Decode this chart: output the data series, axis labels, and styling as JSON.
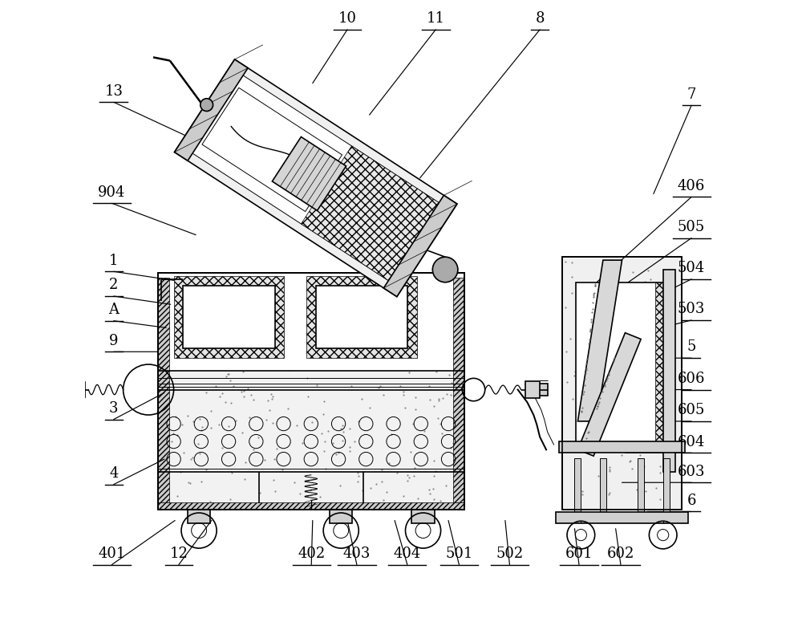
{
  "bg_color": "#ffffff",
  "line_color": "#000000",
  "fig_width": 10.0,
  "fig_height": 7.9,
  "font_size": 13,
  "line_width": 1.2,
  "thin_line": 0.7,
  "labels": {
    "13": [
      0.045,
      0.84,
      0.185,
      0.775
    ],
    "10": [
      0.415,
      0.955,
      0.36,
      0.87
    ],
    "11": [
      0.555,
      0.955,
      0.45,
      0.82
    ],
    "8": [
      0.72,
      0.955,
      0.53,
      0.72
    ],
    "7": [
      0.96,
      0.835,
      0.9,
      0.695
    ],
    "406": [
      0.96,
      0.69,
      0.81,
      0.555
    ],
    "505": [
      0.96,
      0.625,
      0.81,
      0.52
    ],
    "504": [
      0.96,
      0.56,
      0.8,
      0.48
    ],
    "503": [
      0.96,
      0.495,
      0.8,
      0.455
    ],
    "5": [
      0.96,
      0.435,
      0.87,
      0.435
    ],
    "606": [
      0.96,
      0.385,
      0.865,
      0.385
    ],
    "605": [
      0.96,
      0.335,
      0.86,
      0.335
    ],
    "604": [
      0.96,
      0.285,
      0.855,
      0.285
    ],
    "603": [
      0.96,
      0.238,
      0.85,
      0.238
    ],
    "6": [
      0.96,
      0.192,
      0.89,
      0.192
    ],
    "1": [
      0.045,
      0.572,
      0.14,
      0.558
    ],
    "2": [
      0.045,
      0.533,
      0.135,
      0.52
    ],
    "A": [
      0.045,
      0.494,
      0.128,
      0.483
    ],
    "9": [
      0.045,
      0.445,
      0.115,
      0.445
    ],
    "3": [
      0.045,
      0.338,
      0.125,
      0.38
    ],
    "4": [
      0.045,
      0.235,
      0.125,
      0.275
    ],
    "401": [
      0.042,
      0.108,
      0.142,
      0.178
    ],
    "12": [
      0.148,
      0.108,
      0.2,
      0.178
    ],
    "402": [
      0.358,
      0.108,
      0.36,
      0.178
    ],
    "403": [
      0.43,
      0.108,
      0.415,
      0.178
    ],
    "404": [
      0.51,
      0.108,
      0.49,
      0.178
    ],
    "501": [
      0.592,
      0.108,
      0.575,
      0.178
    ],
    "502": [
      0.672,
      0.108,
      0.665,
      0.178
    ],
    "601": [
      0.782,
      0.108,
      0.775,
      0.165
    ],
    "602": [
      0.848,
      0.108,
      0.84,
      0.165
    ],
    "904": [
      0.042,
      0.68,
      0.175,
      0.63
    ]
  }
}
